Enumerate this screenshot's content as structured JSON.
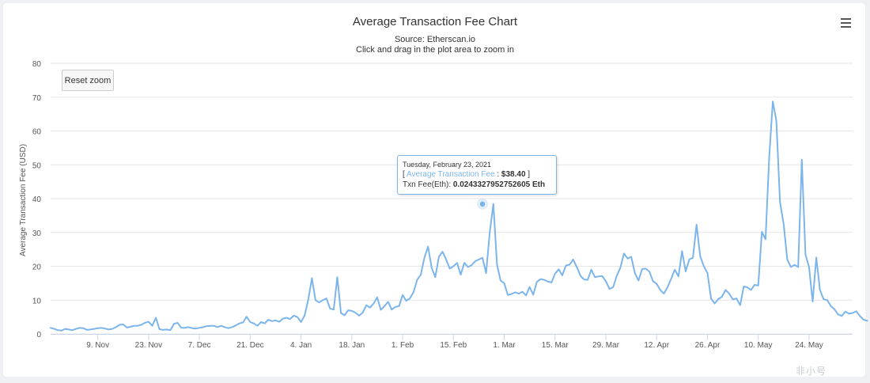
{
  "chart": {
    "title": "Average Transaction Fee Chart",
    "subtitle": "Source: Etherscan.io",
    "subtitle2": "Click and drag in the plot area to zoom in",
    "reset_zoom_label": "Reset zoom",
    "menu_icon": "hamburger-menu-icon",
    "line_color": "#7cb5ec",
    "watermark": "非小号"
  },
  "tooltip": {
    "date": "Tuesday, February 23, 2021",
    "open_bracket": "[ ",
    "series_name": "Average Transaction Fee",
    "separator": " : ",
    "value": "$38.40",
    "close_bracket": " ]",
    "eth_label": "Txn Fee(Eth): ",
    "eth_value": "0.0243327952752605 Eth"
  },
  "chart_data": {
    "type": "line",
    "title": "Average Transaction Fee Chart",
    "subtitle": "Source: Etherscan.io",
    "xlabel": "",
    "ylabel": "Average Transaction Fee (USD)",
    "ylim": [
      0,
      80
    ],
    "yticks": [
      0,
      10,
      20,
      30,
      40,
      50,
      60,
      70,
      80
    ],
    "xlim": [
      "2020-10-27",
      "2021-06-05"
    ],
    "xticks": [
      {
        "date": "2020-11-09",
        "label": "9. Nov"
      },
      {
        "date": "2020-11-23",
        "label": "23. Nov"
      },
      {
        "date": "2020-12-07",
        "label": "7. Dec"
      },
      {
        "date": "2020-12-21",
        "label": "21. Dec"
      },
      {
        "date": "2021-01-04",
        "label": "4. Jan"
      },
      {
        "date": "2021-01-18",
        "label": "18. Jan"
      },
      {
        "date": "2021-02-01",
        "label": "1. Feb"
      },
      {
        "date": "2021-02-15",
        "label": "15. Feb"
      },
      {
        "date": "2021-03-01",
        "label": "1. Mar"
      },
      {
        "date": "2021-03-15",
        "label": "15. Mar"
      },
      {
        "date": "2021-03-29",
        "label": "29. Mar"
      },
      {
        "date": "2021-04-12",
        "label": "12. Apr"
      },
      {
        "date": "2021-04-26",
        "label": "26. Apr"
      },
      {
        "date": "2021-05-10",
        "label": "10. May"
      },
      {
        "date": "2021-05-24",
        "label": "24. May"
      }
    ],
    "grid": true,
    "legend": "none",
    "highlighted_point": {
      "date": "2021-02-23",
      "value": 38.4
    },
    "series": [
      {
        "start_date": "2020-10-27",
        "step_days": 1,
        "values": [
          1.8,
          1.5,
          1.1,
          1.0,
          1.5,
          1.3,
          1.1,
          1.5,
          1.8,
          1.7,
          1.2,
          1.3,
          1.5,
          1.7,
          1.8,
          1.6,
          1.3,
          1.5,
          2.0,
          2.7,
          2.8,
          1.9,
          2.1,
          2.4,
          2.4,
          2.7,
          3.3,
          3.6,
          2.4,
          4.8,
          1.4,
          1.2,
          1.3,
          1.1,
          3.0,
          3.3,
          1.8,
          1.8,
          2.0,
          1.7,
          1.6,
          1.8,
          2.0,
          2.3,
          2.4,
          2.4,
          2.0,
          2.4,
          2.0,
          1.7,
          2.0,
          2.5,
          3.1,
          3.4,
          5.1,
          3.5,
          3.1,
          2.4,
          3.5,
          3.1,
          4.2,
          3.8,
          4.0,
          3.6,
          4.5,
          4.8,
          4.4,
          5.4,
          5.0,
          3.5,
          5.5,
          10.2,
          16.5,
          10.0,
          9.3,
          10.0,
          10.5,
          7.5,
          7.2,
          16.8,
          6.2,
          5.5,
          7.0,
          6.8,
          6.3,
          5.4,
          6.3,
          8.5,
          7.8,
          9.0,
          10.8,
          7.1,
          8.2,
          9.5,
          7.2,
          8.0,
          8.2,
          11.5,
          9.8,
          10.5,
          12.3,
          16.0,
          17.5,
          22.5,
          25.8,
          19.5,
          16.8,
          22.8,
          24.3,
          22.0,
          19.3,
          20.0,
          21.0,
          17.5,
          21.0,
          19.8,
          20.3,
          21.5,
          22.0,
          22.5,
          18.0,
          30.0,
          38.4,
          20.5,
          15.8,
          15.0,
          11.5,
          11.8,
          12.3,
          11.9,
          12.5,
          11.4,
          13.9,
          11.6,
          15.4,
          16.2,
          16.0,
          15.5,
          15.2,
          17.8,
          19.1,
          17.3,
          20.2,
          20.5,
          22.0,
          19.8,
          17.2,
          16.1,
          16.0,
          19.0,
          16.8,
          17.0,
          17.1,
          15.6,
          13.3,
          13.8,
          17.2,
          19.6,
          23.8,
          22.3,
          22.8,
          18.0,
          15.8,
          19.2,
          19.3,
          18.4,
          15.6,
          14.8,
          13.0,
          11.9,
          13.8,
          16.3,
          19.0,
          17.0,
          24.5,
          18.5,
          22.0,
          22.5,
          32.3,
          23.0,
          20.0,
          18.0,
          10.4,
          9.0,
          10.3,
          11.0,
          13.0,
          11.9,
          10.2,
          10.5,
          8.5,
          14.0,
          13.8,
          13.0,
          14.5,
          14.3,
          30.2,
          28.0,
          52.0,
          68.7,
          63.0,
          39.0,
          32.5,
          22.0,
          19.8,
          20.4,
          19.8,
          51.5,
          23.5,
          19.8,
          9.6,
          22.6,
          13.0,
          10.3,
          10.0,
          8.2,
          7.3,
          5.8,
          5.3,
          6.6,
          6.0,
          6.2,
          6.7,
          5.3,
          4.2,
          3.9
        ]
      }
    ]
  }
}
